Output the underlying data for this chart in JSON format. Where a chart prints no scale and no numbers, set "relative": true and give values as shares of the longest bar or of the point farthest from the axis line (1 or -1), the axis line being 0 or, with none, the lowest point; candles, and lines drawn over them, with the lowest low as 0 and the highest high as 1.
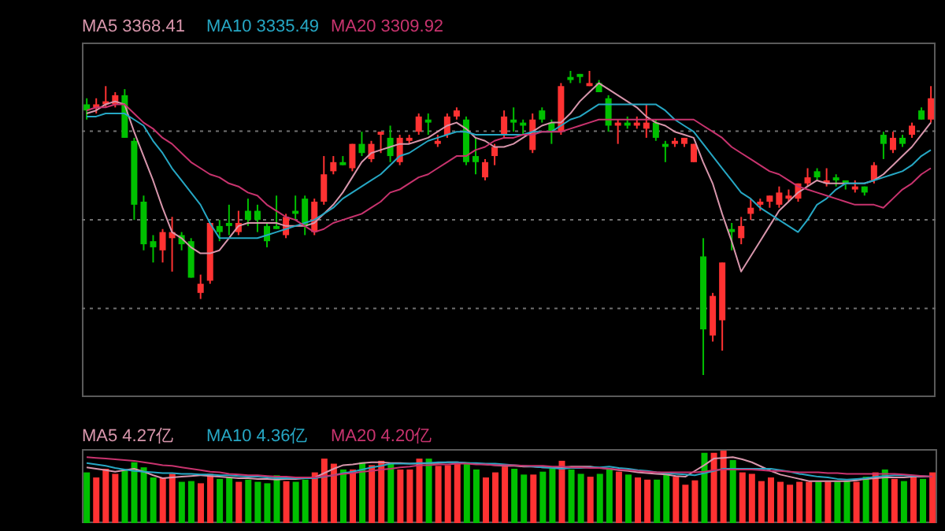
{
  "chart_data": [
    {
      "type": "candlestick",
      "relative": true,
      "grid": true,
      "legend": "top left",
      "marker": "none",
      "categories": [
        null,
        null,
        null,
        null,
        null,
        null,
        null,
        null,
        null,
        null,
        null,
        null,
        null,
        null,
        null,
        null,
        null,
        null,
        null,
        null,
        null,
        null,
        null,
        null,
        null,
        null,
        null,
        null,
        null,
        null,
        null,
        null,
        null,
        null,
        null,
        null,
        null,
        null,
        null,
        null,
        null,
        null,
        null,
        null,
        null,
        null,
        null,
        null,
        null,
        null,
        null,
        null,
        null,
        null,
        null,
        null,
        null,
        null,
        null,
        null,
        null,
        null,
        null,
        null,
        null,
        null,
        null,
        null,
        null,
        null,
        null,
        null,
        null,
        null,
        null,
        null,
        null,
        null,
        null,
        null,
        null,
        null,
        null,
        null,
        null,
        null,
        null,
        null,
        null,
        null
      ],
      "ohlc": [
        [
          0.89,
          0.91,
          0.84,
          0.87
        ],
        [
          0.88,
          0.91,
          0.86,
          0.89
        ],
        [
          0.89,
          0.95,
          0.88,
          0.9
        ],
        [
          0.89,
          0.93,
          0.88,
          0.92
        ],
        [
          0.92,
          0.94,
          0.78,
          0.78
        ],
        [
          0.77,
          0.78,
          0.51,
          0.56
        ],
        [
          0.57,
          0.59,
          0.41,
          0.43
        ],
        [
          0.44,
          0.46,
          0.37,
          0.42
        ],
        [
          0.41,
          0.48,
          0.37,
          0.47
        ],
        [
          0.45,
          0.52,
          0.34,
          0.47
        ],
        [
          0.46,
          0.47,
          0.41,
          0.43
        ],
        [
          0.44,
          0.45,
          0.32,
          0.32
        ],
        [
          0.27,
          0.33,
          0.25,
          0.3
        ],
        [
          0.31,
          0.5,
          0.3,
          0.5
        ],
        [
          0.49,
          0.51,
          0.44,
          0.47
        ],
        [
          0.5,
          0.56,
          0.46,
          0.49
        ],
        [
          0.47,
          0.54,
          0.46,
          0.5
        ],
        [
          0.54,
          0.58,
          0.49,
          0.51
        ],
        [
          0.54,
          0.56,
          0.47,
          0.51
        ],
        [
          0.49,
          0.5,
          0.42,
          0.44
        ],
        [
          0.49,
          0.59,
          0.48,
          0.48
        ],
        [
          0.46,
          0.53,
          0.45,
          0.52
        ],
        [
          0.54,
          0.59,
          0.51,
          0.53
        ],
        [
          0.58,
          0.59,
          0.46,
          0.49
        ],
        [
          0.47,
          0.58,
          0.46,
          0.57
        ],
        [
          0.57,
          0.72,
          0.56,
          0.66
        ],
        [
          0.67,
          0.72,
          0.66,
          0.7
        ],
        [
          0.7,
          0.72,
          0.69,
          0.69
        ],
        [
          0.68,
          0.76,
          0.67,
          0.76
        ],
        [
          0.76,
          0.8,
          0.72,
          0.73
        ],
        [
          0.71,
          0.77,
          0.7,
          0.76
        ],
        [
          0.79,
          0.8,
          0.73,
          0.8
        ],
        [
          0.78,
          0.82,
          0.7,
          0.72
        ],
        [
          0.7,
          0.79,
          0.69,
          0.78
        ],
        [
          0.77,
          0.79,
          0.76,
          0.78
        ],
        [
          0.8,
          0.86,
          0.79,
          0.85
        ],
        [
          0.84,
          0.86,
          0.79,
          0.83
        ],
        [
          0.76,
          0.79,
          0.75,
          0.77
        ],
        [
          0.79,
          0.86,
          0.78,
          0.85
        ],
        [
          0.85,
          0.88,
          0.84,
          0.87
        ],
        [
          0.84,
          0.85,
          0.69,
          0.7
        ],
        [
          0.72,
          0.78,
          0.66,
          0.7
        ],
        [
          0.65,
          0.71,
          0.64,
          0.7
        ],
        [
          0.72,
          0.76,
          0.69,
          0.75
        ],
        [
          0.79,
          0.87,
          0.78,
          0.85
        ],
        [
          0.84,
          0.88,
          0.8,
          0.83
        ],
        [
          0.83,
          0.84,
          0.79,
          0.82
        ],
        [
          0.74,
          0.86,
          0.73,
          0.84
        ],
        [
          0.87,
          0.88,
          0.83,
          0.84
        ],
        [
          0.83,
          0.84,
          0.76,
          0.8
        ],
        [
          0.8,
          0.96,
          0.79,
          0.95
        ],
        [
          0.98,
          1.0,
          0.96,
          0.97
        ],
        [
          0.99,
          0.99,
          0.96,
          0.98
        ],
        [
          0.95,
          1.0,
          0.95,
          0.96
        ],
        [
          0.96,
          0.97,
          0.93,
          0.93
        ],
        [
          0.91,
          0.92,
          0.8,
          0.82
        ],
        [
          0.82,
          0.84,
          0.76,
          0.83
        ],
        [
          0.83,
          0.85,
          0.81,
          0.82
        ],
        [
          0.82,
          0.85,
          0.81,
          0.83
        ],
        [
          0.81,
          0.89,
          0.78,
          0.83
        ],
        [
          0.83,
          0.84,
          0.77,
          0.78
        ],
        [
          0.76,
          0.77,
          0.7,
          0.75
        ],
        [
          0.76,
          0.78,
          0.75,
          0.77
        ],
        [
          0.76,
          0.78,
          0.75,
          0.78
        ],
        [
          0.7,
          0.76,
          0.7,
          0.76
        ],
        [
          0.39,
          0.45,
          0,
          0.15
        ],
        [
          0.13,
          0.27,
          0.11,
          0.26
        ],
        [
          0.18,
          0.37,
          0.08,
          0.37
        ],
        [
          0.48,
          0.5,
          0.41,
          0.47
        ],
        [
          0.45,
          0.52,
          0.43,
          0.49
        ],
        [
          0.53,
          0.58,
          0.51,
          0.55
        ],
        [
          0.56,
          0.58,
          0.54,
          0.57
        ],
        [
          0.57,
          0.59,
          0.55,
          0.59
        ],
        [
          0.56,
          0.62,
          0.55,
          0.6
        ],
        [
          0.58,
          0.61,
          0.57,
          0.59
        ],
        [
          0.58,
          0.63,
          0.57,
          0.63
        ],
        [
          0.63,
          0.68,
          0.62,
          0.65
        ],
        [
          0.67,
          0.68,
          0.64,
          0.65
        ],
        [
          0.63,
          0.68,
          0.62,
          0.64
        ],
        [
          0.65,
          0.66,
          0.62,
          0.64
        ],
        [
          0.64,
          0.64,
          0.61,
          0.63
        ],
        [
          0.61,
          0.64,
          0.6,
          0.62
        ],
        [
          0.62,
          0.62,
          0.59,
          0.6
        ],
        [
          0.64,
          0.7,
          0.63,
          0.69
        ],
        [
          0.79,
          0.8,
          0.71,
          0.76
        ],
        [
          0.74,
          0.8,
          0.73,
          0.78
        ],
        [
          0.78,
          0.79,
          0.75,
          0.76
        ],
        [
          0.79,
          0.83,
          0.78,
          0.82
        ],
        [
          0.87,
          0.88,
          0.84,
          0.84
        ],
        [
          0.84,
          0.95,
          0.83,
          0.91
        ]
      ],
      "colors": [
        "#00c000",
        "#ff3232",
        "#ff3232",
        "#ff3232",
        "#00c000",
        "#00c000",
        "#00c000",
        "#00c000",
        "#ff3232",
        "#ff3232",
        "#00c000",
        "#00c000",
        "#ff3232",
        "#ff3232",
        "#00c000",
        "#00c000",
        "#ff3232",
        "#00c000",
        "#00c000",
        "#00c000",
        "#00c000",
        "#ff3232",
        "#00c000",
        "#00c000",
        "#ff3232",
        "#ff3232",
        "#ff3232",
        "#00c000",
        "#ff3232",
        "#00c000",
        "#ff3232",
        "#ff3232",
        "#00c000",
        "#ff3232",
        "#ff3232",
        "#ff3232",
        "#00c000",
        "#ff3232",
        "#ff3232",
        "#ff3232",
        "#00c000",
        "#00c000",
        "#ff3232",
        "#ff3232",
        "#ff3232",
        "#00c000",
        "#00c000",
        "#ff3232",
        "#00c000",
        "#00c000",
        "#ff3232",
        "#00c000",
        "#00c000",
        "#ff3232",
        "#00c000",
        "#00c000",
        "#ff3232",
        "#00c000",
        "#ff3232",
        "#ff3232",
        "#00c000",
        "#00c000",
        "#ff3232",
        "#ff3232",
        "#ff3232",
        "#00c000",
        "#ff3232",
        "#ff3232",
        "#00c000",
        "#ff3232",
        "#ff3232",
        "#ff3232",
        "#ff3232",
        "#ff3232",
        "#ff3232",
        "#ff3232",
        "#ff3232",
        "#00c000",
        "#ff3232",
        "#00c000",
        "#00c000",
        "#ff3232",
        "#00c000",
        "#ff3232",
        "#00c000",
        "#ff3232",
        "#00c000",
        "#ff3232",
        "#00c000",
        "#ff3232"
      ],
      "series": [
        {
          "name": "MA5 3368.41",
          "type": "line",
          "color": "#d896ac",
          "values": [
            0.86,
            0.87,
            0.89,
            0.9,
            0.89,
            0.8,
            0.72,
            0.64,
            0.55,
            0.47,
            0.45,
            0.42,
            0.4,
            0.4,
            0.41,
            0.45,
            0.49,
            0.5,
            0.5,
            0.5,
            0.5,
            0.49,
            0.49,
            0.49,
            0.5,
            0.53,
            0.56,
            0.6,
            0.65,
            0.7,
            0.73,
            0.74,
            0.75,
            0.76,
            0.76,
            0.77,
            0.78,
            0.8,
            0.82,
            0.83,
            0.81,
            0.78,
            0.77,
            0.75,
            0.75,
            0.76,
            0.78,
            0.8,
            0.82,
            0.83,
            0.83,
            0.86,
            0.9,
            0.93,
            0.96,
            0.94,
            0.92,
            0.9,
            0.88,
            0.85,
            0.83,
            0.82,
            0.8,
            0.79,
            0.78,
            0.7,
            0.63,
            0.53,
            0.44,
            0.34,
            0.39,
            0.44,
            0.49,
            0.54,
            0.57,
            0.6,
            0.62,
            0.64,
            0.63,
            0.63,
            0.63,
            0.63,
            0.63,
            0.64,
            0.66,
            0.69,
            0.72,
            0.75,
            0.79,
            0.83
          ]
        },
        {
          "name": "MA10 3335.49",
          "type": "line",
          "color": "#26a7c4",
          "values": [
            0.85,
            0.85,
            0.86,
            0.86,
            0.86,
            0.84,
            0.82,
            0.77,
            0.73,
            0.68,
            0.64,
            0.6,
            0.56,
            0.5,
            0.45,
            0.45,
            0.45,
            0.45,
            0.45,
            0.46,
            0.47,
            0.48,
            0.49,
            0.5,
            0.51,
            0.53,
            0.55,
            0.58,
            0.6,
            0.62,
            0.64,
            0.66,
            0.69,
            0.72,
            0.73,
            0.75,
            0.77,
            0.78,
            0.79,
            0.8,
            0.8,
            0.79,
            0.79,
            0.79,
            0.79,
            0.79,
            0.79,
            0.8,
            0.8,
            0.8,
            0.82,
            0.84,
            0.85,
            0.87,
            0.89,
            0.89,
            0.89,
            0.89,
            0.89,
            0.89,
            0.89,
            0.87,
            0.84,
            0.82,
            0.8,
            0.76,
            0.72,
            0.68,
            0.64,
            0.6,
            0.58,
            0.55,
            0.53,
            0.51,
            0.49,
            0.47,
            0.51,
            0.56,
            0.58,
            0.61,
            0.63,
            0.63,
            0.63,
            0.64,
            0.65,
            0.66,
            0.67,
            0.69,
            0.72,
            0.74
          ]
        },
        {
          "name": "MA20 3309.92",
          "type": "line",
          "color": "#c8336e",
          "values": [
            0.87,
            0.88,
            0.88,
            0.89,
            0.89,
            0.86,
            0.83,
            0.81,
            0.78,
            0.76,
            0.73,
            0.7,
            0.68,
            0.66,
            0.65,
            0.63,
            0.62,
            0.6,
            0.59,
            0.56,
            0.54,
            0.52,
            0.51,
            0.49,
            0.47,
            0.48,
            0.5,
            0.51,
            0.52,
            0.53,
            0.55,
            0.57,
            0.6,
            0.61,
            0.63,
            0.65,
            0.66,
            0.68,
            0.7,
            0.72,
            0.72,
            0.74,
            0.75,
            0.77,
            0.78,
            0.78,
            0.79,
            0.79,
            0.8,
            0.8,
            0.8,
            0.81,
            0.82,
            0.83,
            0.84,
            0.84,
            0.84,
            0.84,
            0.84,
            0.84,
            0.84,
            0.84,
            0.84,
            0.84,
            0.84,
            0.82,
            0.8,
            0.78,
            0.75,
            0.73,
            0.71,
            0.69,
            0.67,
            0.66,
            0.64,
            0.62,
            0.61,
            0.6,
            0.59,
            0.58,
            0.57,
            0.56,
            0.56,
            0.56,
            0.55,
            0.58,
            0.61,
            0.63,
            0.66,
            0.68
          ]
        }
      ]
    },
    {
      "type": "bar",
      "relative": true,
      "legend": "top left",
      "marker": "none",
      "categories": [
        null,
        null,
        null,
        null,
        null,
        null,
        null,
        null,
        null,
        null,
        null,
        null,
        null,
        null,
        null,
        null,
        null,
        null,
        null,
        null,
        null,
        null,
        null,
        null,
        null,
        null,
        null,
        null,
        null,
        null,
        null,
        null,
        null,
        null,
        null,
        null,
        null,
        null,
        null,
        null,
        null,
        null,
        null,
        null,
        null,
        null,
        null,
        null,
        null,
        null,
        null,
        null,
        null,
        null,
        null,
        null,
        null,
        null,
        null,
        null,
        null,
        null,
        null,
        null,
        null,
        null,
        null,
        null,
        null,
        null,
        null,
        null,
        null,
        null,
        null,
        null,
        null,
        null,
        null,
        null,
        null,
        null,
        null,
        null,
        null,
        null,
        null,
        null,
        null,
        null
      ],
      "series": [
        {
          "type": "bar",
          "colors": [
            "#00c000",
            "#ff3232",
            "#ff3232",
            "#ff3232",
            "#00c000",
            "#00c000",
            "#00c000",
            "#00c000",
            "#ff3232",
            "#ff3232",
            "#00c000",
            "#00c000",
            "#ff3232",
            "#ff3232",
            "#00c000",
            "#00c000",
            "#ff3232",
            "#00c000",
            "#00c000",
            "#00c000",
            "#00c000",
            "#ff3232",
            "#00c000",
            "#00c000",
            "#ff3232",
            "#ff3232",
            "#ff3232",
            "#00c000",
            "#ff3232",
            "#00c000",
            "#ff3232",
            "#ff3232",
            "#00c000",
            "#ff3232",
            "#ff3232",
            "#ff3232",
            "#00c000",
            "#ff3232",
            "#ff3232",
            "#ff3232",
            "#00c000",
            "#00c000",
            "#ff3232",
            "#ff3232",
            "#ff3232",
            "#00c000",
            "#00c000",
            "#ff3232",
            "#00c000",
            "#00c000",
            "#ff3232",
            "#00c000",
            "#00c000",
            "#ff3232",
            "#00c000",
            "#00c000",
            "#ff3232",
            "#00c000",
            "#ff3232",
            "#ff3232",
            "#00c000",
            "#00c000",
            "#ff3232",
            "#ff3232",
            "#ff3232",
            "#00c000",
            "#ff3232",
            "#ff3232",
            "#00c000",
            "#ff3232",
            "#ff3232",
            "#ff3232",
            "#ff3232",
            "#ff3232",
            "#ff3232",
            "#ff3232",
            "#ff3232",
            "#00c000",
            "#ff3232",
            "#00c000",
            "#00c000",
            "#ff3232",
            "#00c000",
            "#ff3232",
            "#00c000",
            "#ff3232",
            "#00c000",
            "#ff3232",
            "#00c000",
            "#ff3232"
          ],
          "values": [
            0.7,
            0.63,
            0.75,
            0.68,
            0.74,
            0.84,
            0.77,
            0.63,
            0.62,
            0.68,
            0.57,
            0.58,
            0.55,
            0.68,
            0.61,
            0.63,
            0.57,
            0.6,
            0.57,
            0.55,
            0.66,
            0.58,
            0.57,
            0.6,
            0.7,
            0.89,
            0.82,
            0.74,
            0.74,
            0.84,
            0.8,
            0.86,
            0.82,
            0.74,
            0.74,
            0.89,
            0.89,
            0.79,
            0.8,
            0.84,
            0.84,
            0.74,
            0.63,
            0.7,
            0.78,
            0.75,
            0.67,
            0.67,
            0.71,
            0.75,
            0.86,
            0.74,
            0.68,
            0.64,
            0.68,
            0.74,
            0.71,
            0.67,
            0.63,
            0.6,
            0.6,
            0.7,
            0.64,
            0.53,
            0.59,
            0.97,
            0.97,
            1.0,
            0.87,
            0.7,
            0.68,
            0.58,
            0.63,
            0.57,
            0.53,
            0.57,
            0.57,
            0.57,
            0.57,
            0.57,
            0.58,
            0.57,
            0.64,
            0.7,
            0.74,
            0.61,
            0.58,
            0.65,
            0.61,
            0.7
          ]
        },
        {
          "name": "MA5 4.27亿",
          "type": "line",
          "color": "#d896ac",
          "values": [
            0.77,
            0.75,
            0.73,
            0.71,
            0.73,
            0.75,
            0.71,
            0.66,
            0.62,
            0.63,
            0.64,
            0.65,
            0.66,
            0.65,
            0.64,
            0.63,
            0.62,
            0.62,
            0.61,
            0.61,
            0.6,
            0.61,
            0.61,
            0.62,
            0.63,
            0.69,
            0.75,
            0.8,
            0.81,
            0.83,
            0.84,
            0.84,
            0.83,
            0.83,
            0.82,
            0.82,
            0.83,
            0.83,
            0.84,
            0.84,
            0.83,
            0.82,
            0.81,
            0.8,
            0.79,
            0.79,
            0.78,
            0.78,
            0.77,
            0.77,
            0.77,
            0.78,
            0.78,
            0.78,
            0.76,
            0.75,
            0.73,
            0.72,
            0.7,
            0.69,
            0.68,
            0.67,
            0.65,
            0.64,
            0.72,
            0.8,
            0.89,
            0.9,
            0.91,
            0.88,
            0.84,
            0.78,
            0.72,
            0.67,
            0.64,
            0.61,
            0.58,
            0.58,
            0.58,
            0.58,
            0.58,
            0.59,
            0.61,
            0.62,
            0.63,
            0.63,
            0.63,
            0.64,
            0.64,
            0.64
          ]
        },
        {
          "name": "MA10 4.36亿",
          "type": "line",
          "color": "#26a7c4",
          "values": [
            0.83,
            0.81,
            0.79,
            0.76,
            0.74,
            0.72,
            0.71,
            0.7,
            0.69,
            0.69,
            0.68,
            0.68,
            0.67,
            0.67,
            0.66,
            0.66,
            0.65,
            0.64,
            0.64,
            0.63,
            0.62,
            0.62,
            0.62,
            0.62,
            0.62,
            0.64,
            0.66,
            0.69,
            0.71,
            0.74,
            0.77,
            0.79,
            0.82,
            0.82,
            0.82,
            0.83,
            0.83,
            0.84,
            0.84,
            0.84,
            0.83,
            0.83,
            0.82,
            0.82,
            0.81,
            0.8,
            0.79,
            0.78,
            0.77,
            0.76,
            0.75,
            0.76,
            0.76,
            0.77,
            0.77,
            0.78,
            0.76,
            0.75,
            0.73,
            0.72,
            0.7,
            0.69,
            0.68,
            0.67,
            0.66,
            0.69,
            0.72,
            0.75,
            0.75,
            0.75,
            0.75,
            0.75,
            0.75,
            0.73,
            0.71,
            0.68,
            0.66,
            0.64,
            0.63,
            0.61,
            0.6,
            0.61,
            0.62,
            0.64,
            0.65,
            0.66,
            0.66,
            0.65,
            0.65,
            0.64
          ]
        },
        {
          "name": "MA20 4.20亿",
          "type": "line",
          "color": "#c8336e",
          "values": [
            0.91,
            0.9,
            0.89,
            0.88,
            0.87,
            0.86,
            0.84,
            0.82,
            0.8,
            0.79,
            0.77,
            0.75,
            0.73,
            0.71,
            0.7,
            0.68,
            0.67,
            0.66,
            0.66,
            0.65,
            0.64,
            0.64,
            0.63,
            0.63,
            0.63,
            0.65,
            0.66,
            0.68,
            0.69,
            0.71,
            0.72,
            0.74,
            0.75,
            0.77,
            0.78,
            0.8,
            0.8,
            0.81,
            0.81,
            0.82,
            0.82,
            0.81,
            0.81,
            0.8,
            0.8,
            0.8,
            0.79,
            0.79,
            0.79,
            0.78,
            0.78,
            0.77,
            0.77,
            0.76,
            0.76,
            0.75,
            0.74,
            0.73,
            0.72,
            0.71,
            0.7,
            0.7,
            0.7,
            0.7,
            0.7,
            0.71,
            0.73,
            0.74,
            0.74,
            0.74,
            0.74,
            0.73,
            0.72,
            0.72,
            0.71,
            0.7,
            0.7,
            0.7,
            0.69,
            0.69,
            0.68,
            0.68,
            0.68,
            0.68,
            0.68,
            0.68,
            0.67,
            0.66,
            0.65,
            0.64
          ]
        }
      ]
    }
  ]
}
